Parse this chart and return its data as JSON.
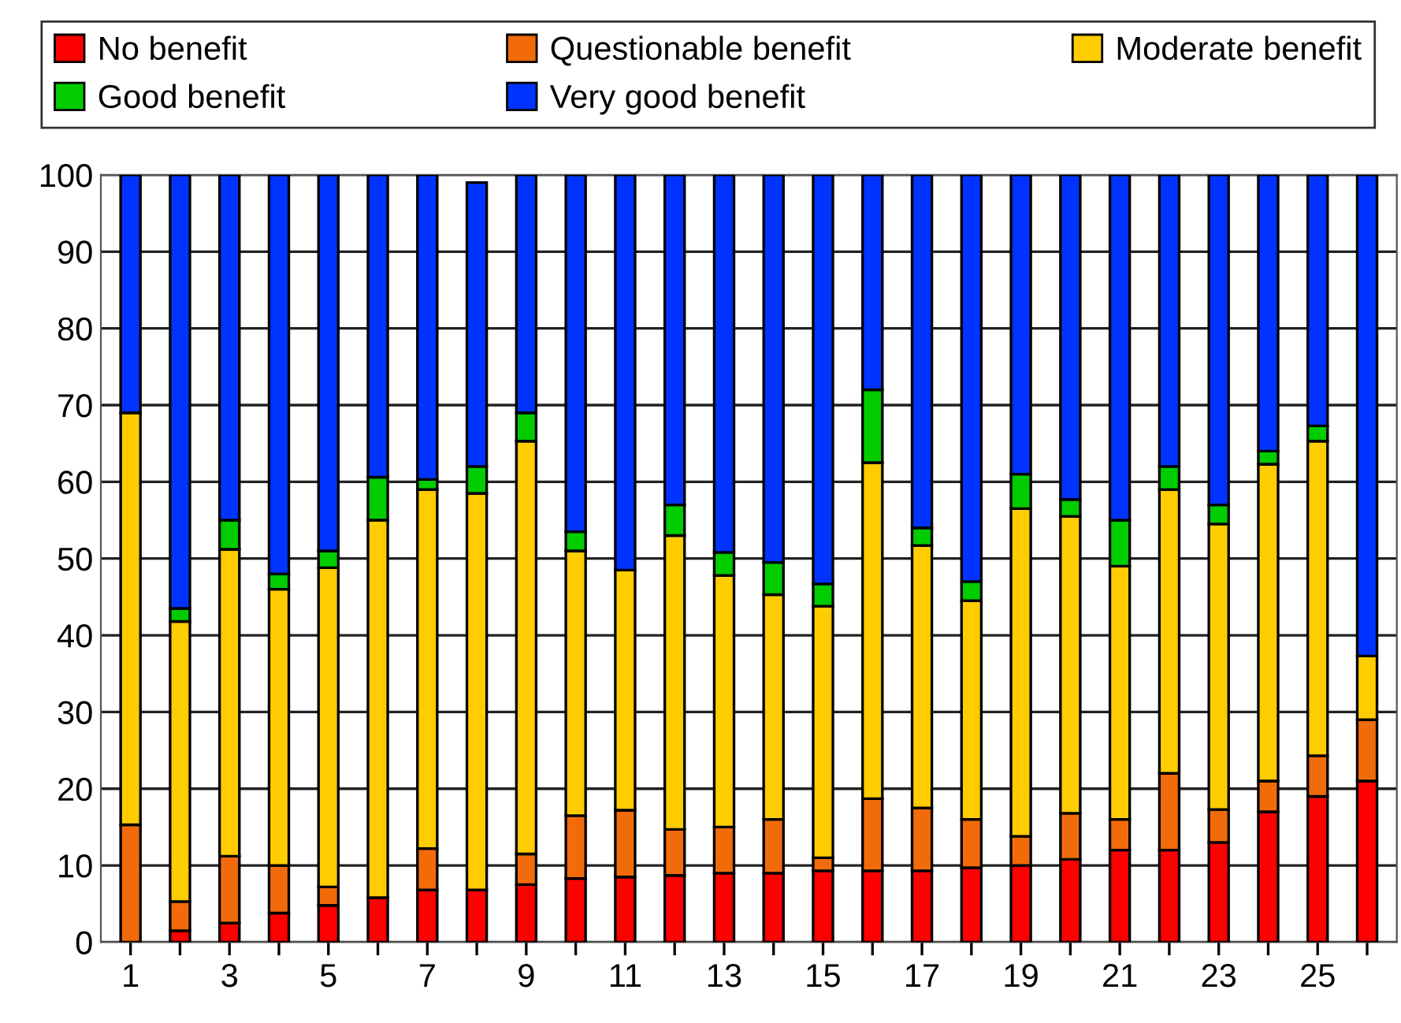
{
  "chart_data": {
    "type": "bar",
    "stacked": true,
    "categories": [
      "1",
      null,
      "3",
      null,
      "5",
      null,
      "7",
      null,
      "9",
      null,
      "11",
      null,
      "13",
      null,
      "15",
      null,
      "17",
      null,
      "19",
      null,
      "21",
      null,
      "23",
      null,
      "25",
      null
    ],
    "series": [
      {
        "name": "No benefit",
        "color": "#ff0000",
        "values": [
          0,
          1.5,
          2.5,
          3.8,
          4.8,
          5.8,
          6.8,
          6.8,
          7.5,
          8.3,
          8.5,
          8.7,
          9,
          9,
          9.3,
          9.3,
          9.3,
          9.7,
          10,
          10.8,
          12,
          12,
          13,
          17,
          19,
          21
        ]
      },
      {
        "name": "Questionable benefit",
        "color": "#f26b0a",
        "values": [
          15.3,
          3.8,
          8.7,
          6.2,
          2.4,
          0,
          5.4,
          0,
          4,
          8.2,
          8.7,
          6,
          6,
          7,
          1.7,
          9.4,
          8.2,
          6.3,
          3.8,
          6,
          4,
          10,
          4.3,
          4,
          5.3,
          8
        ]
      },
      {
        "name": "Moderate benefit",
        "color": "#ffcc00",
        "values": [
          53.7,
          36.5,
          40,
          36,
          41.6,
          49.2,
          46.8,
          51.7,
          53.8,
          34.5,
          31.3,
          38.3,
          32.8,
          29.3,
          32.8,
          43.8,
          34.2,
          28.5,
          42.7,
          38.7,
          33,
          37,
          37.2,
          41.3,
          41,
          8.3
        ]
      },
      {
        "name": "Good benefit",
        "color": "#00cc00",
        "values": [
          0,
          1.7,
          3.8,
          2,
          2.2,
          5.6,
          1.3,
          3.5,
          3.7,
          2.5,
          0,
          4,
          3,
          4.2,
          2.9,
          9.5,
          2.3,
          2.5,
          4.5,
          2.2,
          6,
          3,
          2.5,
          1.7,
          2,
          0
        ]
      },
      {
        "name": "Very good benefit",
        "color": "#0033ff",
        "values": [
          31,
          56.5,
          45,
          52,
          49,
          39.4,
          39.7,
          37,
          31,
          46.5,
          51.5,
          43,
          49.2,
          50.5,
          53.3,
          28,
          46,
          53,
          39,
          42.3,
          45,
          38,
          43,
          36,
          32.7,
          62.7
        ]
      }
    ],
    "ylim": [
      0,
      100
    ],
    "yticks": [
      0,
      10,
      20,
      30,
      40,
      50,
      60,
      70,
      80,
      90,
      100
    ],
    "grid": "y",
    "legend": "top"
  }
}
